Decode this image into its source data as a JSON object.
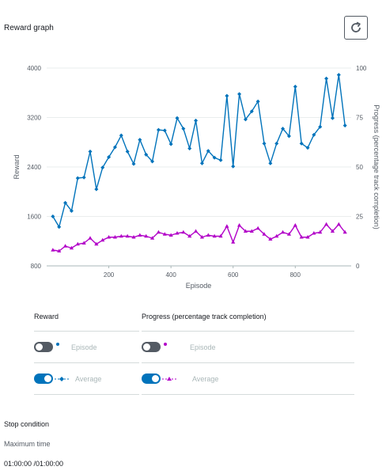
{
  "title": "Reward graph",
  "chart_data": {
    "type": "line",
    "xlabel": "Episode",
    "ylabel": "Reward",
    "y2label": "Progress (percentage track completion)",
    "xticks": [
      200,
      400,
      600,
      800
    ],
    "yticks": [
      "800",
      "1600",
      "2400",
      "3200",
      "4000"
    ],
    "y2ticks": [
      "0",
      "25",
      "50",
      "75",
      "100"
    ],
    "xlim": [
      0,
      980
    ],
    "ylim": [
      800,
      4000
    ],
    "y2lim": [
      0,
      100
    ],
    "colors": {
      "reward": "#0073bb",
      "progress": "#b200c8"
    },
    "series": [
      {
        "name": "Reward",
        "axis": "left",
        "marker": "diamond",
        "x": [
          20,
          40,
          60,
          80,
          100,
          120,
          140,
          160,
          180,
          200,
          220,
          240,
          260,
          280,
          300,
          320,
          340,
          360,
          380,
          400,
          420,
          440,
          460,
          480,
          500,
          520,
          540,
          560,
          580,
          600,
          620,
          640,
          660,
          680,
          700,
          720,
          740,
          760,
          780,
          800,
          820,
          840,
          860,
          880,
          900,
          920,
          940,
          960
        ],
        "y": [
          1600,
          1430,
          1820,
          1690,
          2220,
          2230,
          2650,
          2040,
          2390,
          2560,
          2720,
          2910,
          2650,
          2450,
          2840,
          2600,
          2490,
          3000,
          2990,
          2770,
          3190,
          3020,
          2700,
          3150,
          2460,
          2660,
          2550,
          2510,
          3550,
          2410,
          3580,
          3170,
          3300,
          3460,
          2780,
          2460,
          2780,
          3020,
          2900,
          3700,
          2780,
          2710,
          2920,
          3050,
          3830,
          3190,
          3890,
          3070
        ]
      },
      {
        "name": "Progress (percentage track completion)",
        "axis": "right",
        "marker": "triangle",
        "x": [
          20,
          40,
          60,
          80,
          100,
          120,
          140,
          160,
          180,
          200,
          220,
          240,
          260,
          280,
          300,
          320,
          340,
          360,
          380,
          400,
          420,
          440,
          460,
          480,
          500,
          520,
          540,
          560,
          580,
          600,
          620,
          640,
          660,
          680,
          700,
          720,
          740,
          760,
          780,
          800,
          820,
          840,
          860,
          880,
          900,
          920,
          940,
          960
        ],
        "y": [
          8,
          7.5,
          10,
          9,
          11,
          11.5,
          14,
          11,
          13,
          14.5,
          14.5,
          15,
          15,
          14.5,
          15.5,
          15,
          14,
          17,
          16,
          15.5,
          16.5,
          17,
          15,
          17.5,
          14.5,
          15.5,
          15,
          15,
          20,
          12,
          20.5,
          17.5,
          17.5,
          19,
          16,
          13.5,
          15,
          17,
          16,
          20.5,
          14.5,
          14.5,
          16.5,
          17,
          21,
          17.5,
          21,
          17
        ]
      }
    ]
  },
  "legend": {
    "reward_header": "Reward",
    "progress_header": "Progress (percentage track completion)",
    "episode_label": "Episode",
    "average_label": "Average"
  },
  "stop": {
    "heading": "Stop condition",
    "max_label": "Maximum time",
    "max_value": "01:00:00 /01:00:00"
  }
}
